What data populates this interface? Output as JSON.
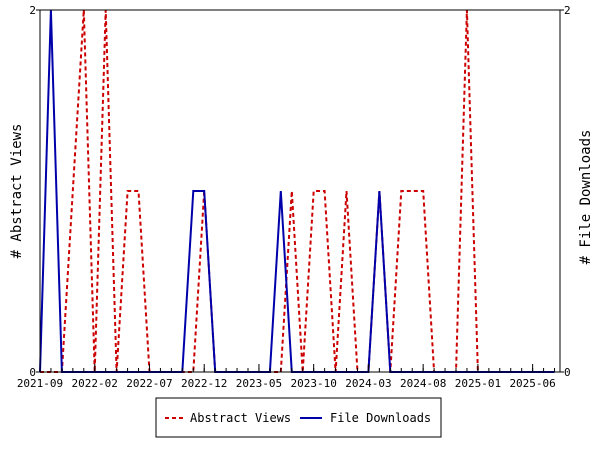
{
  "chart_data": {
    "type": "line",
    "ylabel_left": "# Abstract Views",
    "ylabel_right": "# File Downloads",
    "x_ticks": [
      "2021-09",
      "2022-02",
      "2022-07",
      "2022-12",
      "2023-05",
      "2023-10",
      "2024-03",
      "2024-08",
      "2025-01",
      "2025-06"
    ],
    "x_tick_index": [
      0,
      5,
      10,
      15,
      20,
      25,
      30,
      35,
      40,
      45
    ],
    "xlim_index": [
      0,
      47.5
    ],
    "ylim_left": [
      0,
      2
    ],
    "ylim_right": [
      0,
      2
    ],
    "y_ticks_left": [
      "0",
      "2"
    ],
    "y_ticks_right": [
      "0",
      "2"
    ],
    "legend_position": "bottom",
    "colors": {
      "abstract_views": "#cc0000",
      "file_downloads": "#0000aa"
    },
    "series": [
      {
        "name": "Abstract Views",
        "axis": "left",
        "style": "dashed",
        "x": [
          0,
          1,
          2,
          3,
          4,
          5,
          6,
          7,
          8,
          9,
          10,
          11,
          12,
          13,
          14,
          15,
          16,
          17,
          18,
          19,
          20,
          21,
          22,
          23,
          24,
          25,
          26,
          27,
          28,
          29,
          30,
          31,
          32,
          33,
          34,
          35,
          36,
          37,
          38,
          39,
          40,
          41,
          42,
          43,
          44,
          45,
          46,
          47
        ],
        "values": [
          0,
          0,
          0,
          1,
          2,
          0,
          2,
          0,
          1,
          1,
          0,
          0,
          0,
          0,
          0,
          1,
          0,
          0,
          0,
          0,
          0,
          0,
          0,
          1,
          0,
          1,
          1,
          0,
          1,
          0,
          0,
          1,
          0,
          1,
          1,
          1,
          0,
          0,
          0,
          2,
          0,
          0,
          0,
          0,
          0,
          0,
          0,
          0
        ]
      },
      {
        "name": "File Downloads",
        "axis": "right",
        "style": "solid",
        "x": [
          0,
          0.5,
          1,
          1.5,
          2,
          3,
          4,
          5,
          6,
          7,
          8,
          9,
          10,
          11,
          12,
          13,
          14,
          15,
          16,
          17,
          18,
          19,
          20,
          21,
          22,
          23,
          24,
          25,
          26,
          27,
          28,
          29,
          30,
          31,
          32,
          33,
          34,
          35,
          36,
          37,
          38,
          39,
          40,
          41,
          42,
          43,
          44,
          45,
          46,
          47
        ],
        "values": [
          0,
          1,
          2,
          1,
          0,
          0,
          0,
          0,
          0,
          0,
          0,
          0,
          0,
          0,
          0,
          0,
          1,
          1,
          0,
          0,
          0,
          0,
          0,
          0,
          1,
          0,
          0,
          0,
          0,
          0,
          0,
          0,
          0,
          1,
          0,
          0,
          0,
          0,
          0,
          0,
          0,
          0,
          0,
          0,
          0,
          0,
          0,
          0,
          0,
          0
        ]
      }
    ]
  }
}
